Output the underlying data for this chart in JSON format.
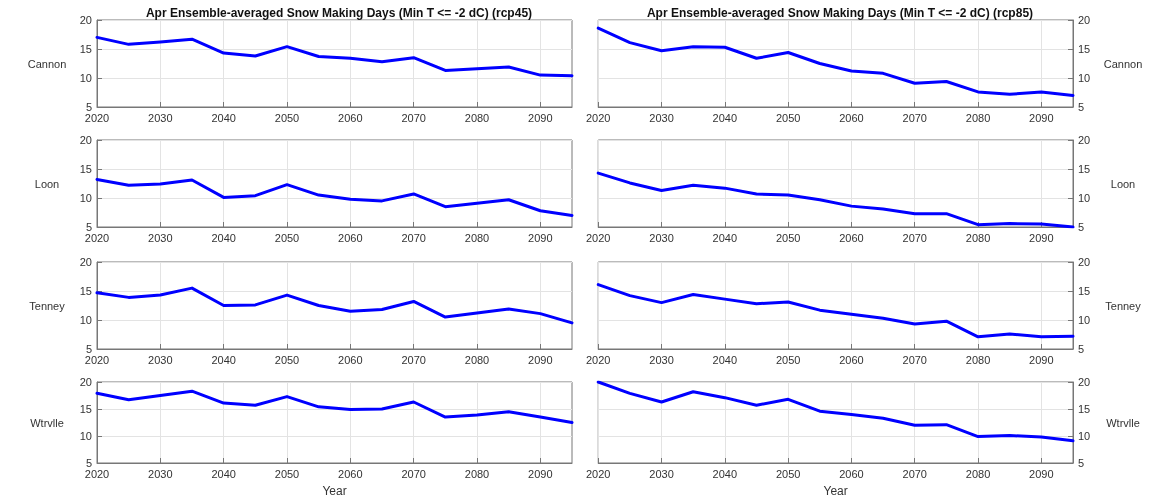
{
  "chart_data": [
    {
      "type": "line",
      "title": "Apr Ensemble-averaged Snow Making Days (Min T <= -2 dC) (rcp45)",
      "ylabel": "Cannon",
      "x": [
        2020,
        2025,
        2030,
        2035,
        2040,
        2045,
        2050,
        2055,
        2060,
        2065,
        2070,
        2075,
        2080,
        2085,
        2090,
        2095
      ],
      "xlim": [
        2020,
        2095
      ],
      "xticks": [
        2020,
        2030,
        2040,
        2050,
        2060,
        2070,
        2080,
        2090
      ],
      "ylim": [
        5,
        20
      ],
      "yticks": [
        5,
        10,
        15,
        20
      ],
      "grid": true,
      "marker": "none",
      "line_style": "solid",
      "series": [
        {
          "color": "#0000ff",
          "values": [
            17,
            15.8,
            16.2,
            16.7,
            14.3,
            13.8,
            15.4,
            13.7,
            13.4,
            12.8,
            13.5,
            11.3,
            11.6,
            11.9,
            10.5,
            10.4
          ]
        }
      ]
    },
    {
      "type": "line",
      "title": "Apr Ensemble-averaged Snow Making Days (Min T <= -2 dC) (rcp85)",
      "ylabel": "Cannon",
      "x": [
        2020,
        2025,
        2030,
        2035,
        2040,
        2045,
        2050,
        2055,
        2060,
        2065,
        2070,
        2075,
        2080,
        2085,
        2090,
        2095
      ],
      "xlim": [
        2020,
        2095
      ],
      "xticks": [
        2020,
        2030,
        2040,
        2050,
        2060,
        2070,
        2080,
        2090
      ],
      "ylim": [
        5,
        20
      ],
      "yticks": [
        5,
        10,
        15,
        20
      ],
      "grid": true,
      "marker": "none",
      "line_style": "solid",
      "series": [
        {
          "color": "#0000ff",
          "values": [
            18.6,
            16.1,
            14.7,
            15.4,
            15.3,
            13.4,
            14.4,
            12.5,
            11.2,
            10.8,
            9.1,
            9.4,
            7.6,
            7.2,
            7.6,
            7.0
          ]
        }
      ]
    },
    {
      "type": "line",
      "ylabel": "Loon",
      "x": [
        2020,
        2025,
        2030,
        2035,
        2040,
        2045,
        2050,
        2055,
        2060,
        2065,
        2070,
        2075,
        2080,
        2085,
        2090,
        2095
      ],
      "xlim": [
        2020,
        2095
      ],
      "xticks": [
        2020,
        2030,
        2040,
        2050,
        2060,
        2070,
        2080,
        2090
      ],
      "ylim": [
        5,
        20
      ],
      "yticks": [
        5,
        10,
        15,
        20
      ],
      "grid": true,
      "marker": "none",
      "line_style": "solid",
      "series": [
        {
          "color": "#0000ff",
          "values": [
            13.2,
            12.2,
            12.4,
            13.1,
            10.1,
            10.4,
            12.3,
            10.5,
            9.8,
            9.5,
            10.7,
            8.5,
            9.1,
            9.7,
            7.8,
            7.0
          ]
        }
      ]
    },
    {
      "type": "line",
      "ylabel": "Loon",
      "x": [
        2020,
        2025,
        2030,
        2035,
        2040,
        2045,
        2050,
        2055,
        2060,
        2065,
        2070,
        2075,
        2080,
        2085,
        2090,
        2095
      ],
      "xlim": [
        2020,
        2095
      ],
      "xticks": [
        2020,
        2030,
        2040,
        2050,
        2060,
        2070,
        2080,
        2090
      ],
      "ylim": [
        5,
        20
      ],
      "yticks": [
        5,
        10,
        15,
        20
      ],
      "grid": true,
      "marker": "none",
      "line_style": "solid",
      "series": [
        {
          "color": "#0000ff",
          "values": [
            14.3,
            12.6,
            11.3,
            12.2,
            11.7,
            10.7,
            10.5,
            9.7,
            8.6,
            8.1,
            7.3,
            7.3,
            5.4,
            5.6,
            5.5,
            5.0
          ]
        }
      ]
    },
    {
      "type": "line",
      "ylabel": "Tenney",
      "x": [
        2020,
        2025,
        2030,
        2035,
        2040,
        2045,
        2050,
        2055,
        2060,
        2065,
        2070,
        2075,
        2080,
        2085,
        2090,
        2095
      ],
      "xlim": [
        2020,
        2095
      ],
      "xticks": [
        2020,
        2030,
        2040,
        2050,
        2060,
        2070,
        2080,
        2090
      ],
      "ylim": [
        5,
        20
      ],
      "yticks": [
        5,
        10,
        15,
        20
      ],
      "grid": true,
      "marker": "none",
      "line_style": "solid",
      "series": [
        {
          "color": "#0000ff",
          "values": [
            14.7,
            13.9,
            14.3,
            15.5,
            12.5,
            12.6,
            14.3,
            12.5,
            11.5,
            11.8,
            13.2,
            10.5,
            11.2,
            11.9,
            11.1,
            9.5
          ]
        }
      ]
    },
    {
      "type": "line",
      "ylabel": "Tenney",
      "x": [
        2020,
        2025,
        2030,
        2035,
        2040,
        2045,
        2050,
        2055,
        2060,
        2065,
        2070,
        2075,
        2080,
        2085,
        2090,
        2095
      ],
      "xlim": [
        2020,
        2095
      ],
      "xticks": [
        2020,
        2030,
        2040,
        2050,
        2060,
        2070,
        2080,
        2090
      ],
      "ylim": [
        5,
        20
      ],
      "yticks": [
        5,
        10,
        15,
        20
      ],
      "grid": true,
      "marker": "none",
      "line_style": "solid",
      "series": [
        {
          "color": "#0000ff",
          "values": [
            16.1,
            14.2,
            13.0,
            14.4,
            13.6,
            12.8,
            13.1,
            11.7,
            11.0,
            10.3,
            9.3,
            9.8,
            7.1,
            7.6,
            7.1,
            7.2
          ]
        }
      ]
    },
    {
      "type": "line",
      "ylabel": "Wtrvlle",
      "xlabel": "Year",
      "x": [
        2020,
        2025,
        2030,
        2035,
        2040,
        2045,
        2050,
        2055,
        2060,
        2065,
        2070,
        2075,
        2080,
        2085,
        2090,
        2095
      ],
      "xlim": [
        2020,
        2095
      ],
      "xticks": [
        2020,
        2030,
        2040,
        2050,
        2060,
        2070,
        2080,
        2090
      ],
      "ylim": [
        5,
        20
      ],
      "yticks": [
        5,
        10,
        15,
        20
      ],
      "grid": true,
      "marker": "none",
      "line_style": "solid",
      "series": [
        {
          "color": "#0000ff",
          "values": [
            17.9,
            16.7,
            17.5,
            18.3,
            16.1,
            15.7,
            17.3,
            15.4,
            14.9,
            15.0,
            16.3,
            13.5,
            13.9,
            14.5,
            13.5,
            12.5
          ]
        }
      ]
    },
    {
      "type": "line",
      "ylabel": "Wtrvlle",
      "xlabel": "Year",
      "x": [
        2020,
        2025,
        2030,
        2035,
        2040,
        2045,
        2050,
        2055,
        2060,
        2065,
        2070,
        2075,
        2080,
        2085,
        2090,
        2095
      ],
      "xlim": [
        2020,
        2095
      ],
      "xticks": [
        2020,
        2030,
        2040,
        2050,
        2060,
        2070,
        2080,
        2090
      ],
      "ylim": [
        5,
        20
      ],
      "yticks": [
        5,
        10,
        15,
        20
      ],
      "grid": true,
      "marker": "none",
      "line_style": "solid",
      "series": [
        {
          "color": "#0000ff",
          "values": [
            20,
            17.9,
            16.3,
            18.2,
            17.1,
            15.7,
            16.8,
            14.6,
            14.0,
            13.3,
            12.0,
            12.1,
            9.9,
            10.1,
            9.8,
            9.1
          ]
        }
      ]
    }
  ]
}
